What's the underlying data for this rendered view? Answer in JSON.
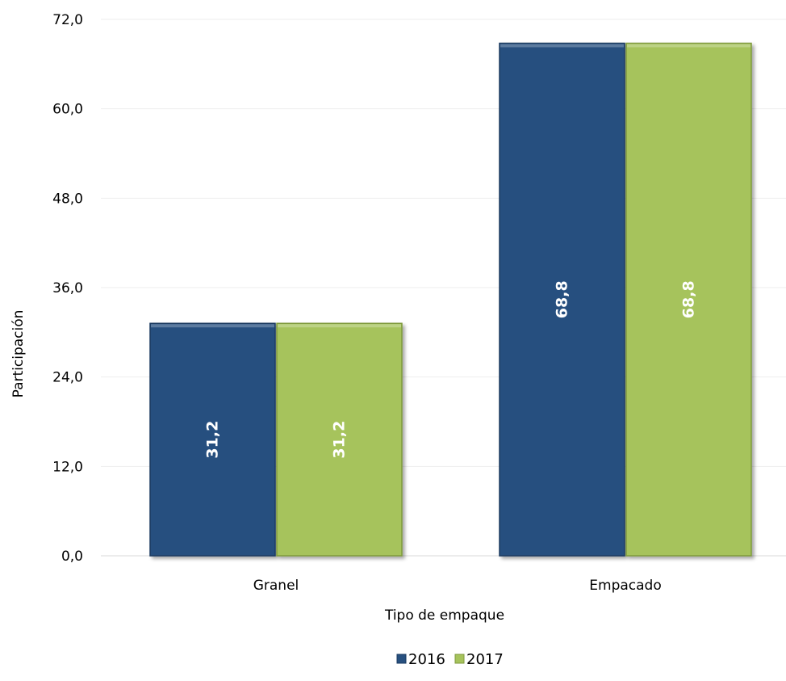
{
  "chart_data": {
    "type": "bar",
    "categories": [
      "Granel",
      "Empacado"
    ],
    "series": [
      {
        "name": "2016",
        "values": [
          31.2,
          68.8
        ],
        "color": "#27507f",
        "labels": [
          "31,2",
          "68,8"
        ]
      },
      {
        "name": "2017",
        "values": [
          31.2,
          68.8
        ],
        "color": "#a6c35c",
        "labels": [
          "31,2",
          "68,8"
        ]
      }
    ],
    "xlabel": "Tipo de empaque",
    "ylabel": "Participación",
    "ylim": [
      0,
      72
    ],
    "yticks": [
      0,
      12,
      24,
      36,
      48,
      60,
      72
    ],
    "ytick_labels": [
      "0,0",
      "12,0",
      "24,0",
      "36,0",
      "48,0",
      "60,0",
      "72,0"
    ],
    "grid": true,
    "legend_position": "bottom"
  }
}
